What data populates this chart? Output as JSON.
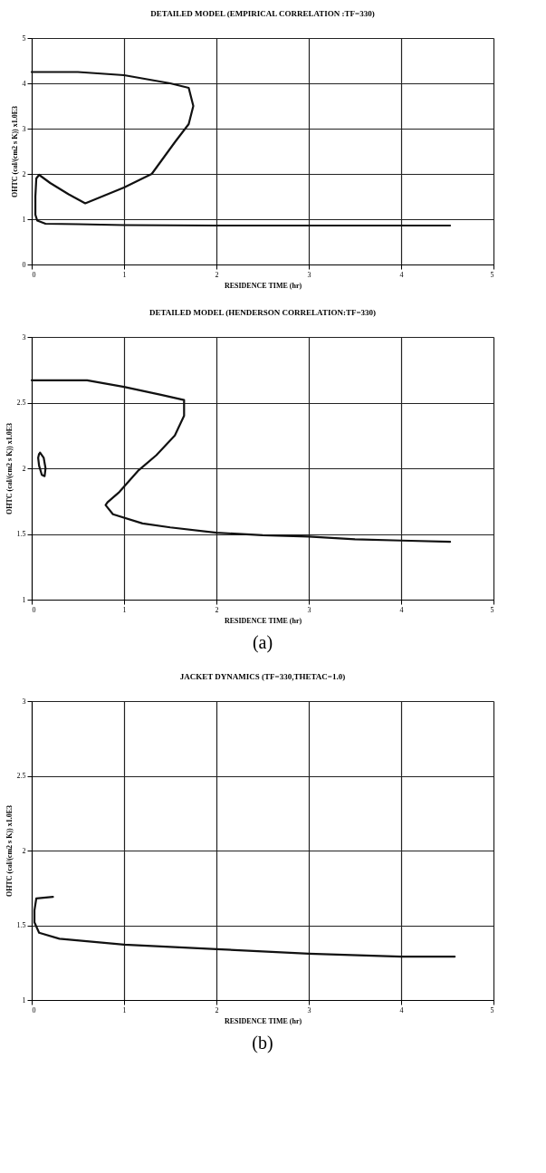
{
  "chart_data": [
    {
      "type": "line",
      "title": "DETAILED MODEL (EMPIRICAL CORRELATION :TF=330)",
      "xlabel": "RESIDENCE TIME (hr)",
      "ylabel": "OHTC (cal/(cm2 s K)) x1.0E3",
      "xlim": [
        0,
        5
      ],
      "ylim": [
        0,
        5
      ],
      "xticks": [
        0,
        1,
        2,
        3,
        4,
        5
      ],
      "yticks": [
        0,
        1,
        2,
        3,
        4,
        5
      ],
      "grid": true,
      "series": [
        {
          "color": "#111111",
          "x": [
            0,
            0.5,
            1,
            1.5,
            1.7,
            1.75,
            1.7,
            1.55,
            1.3,
            1,
            0.7,
            0.58,
            0.4,
            0.2,
            0.08,
            0.05,
            0.04,
            0.04,
            0.06,
            0.15,
            0.5,
            1,
            2,
            3,
            4,
            4.53
          ],
          "values": [
            4.25,
            4.25,
            4.18,
            4.0,
            3.9,
            3.5,
            3.1,
            2.7,
            2.0,
            1.7,
            1.45,
            1.35,
            1.55,
            1.8,
            1.98,
            1.9,
            1.5,
            1.1,
            0.97,
            0.9,
            0.89,
            0.87,
            0.86,
            0.86,
            0.86,
            0.86
          ]
        }
      ]
    },
    {
      "type": "line",
      "title": "DETAILED MODEL (HENDERSON CORRELATION:TF=330)",
      "xlabel": "RESIDENCE TIME (hr)",
      "ylabel": "OHTC (cal/(cm2 s K)) x1.0E3",
      "xlim": [
        0,
        5
      ],
      "ylim": [
        1,
        3
      ],
      "xticks": [
        0,
        1,
        2,
        3,
        4,
        5
      ],
      "yticks": [
        1,
        1.5,
        2,
        2.5,
        3
      ],
      "grid": true,
      "annotations": [
        "(a)"
      ],
      "series": [
        {
          "color": "#111111",
          "x": [
            0,
            0.6,
            1,
            1.4,
            1.65,
            1.65,
            1.55,
            1.35,
            1.15,
            0.95,
            0.82,
            0.8,
            0.88,
            1.2,
            1.5,
            2,
            2.5,
            3,
            3.5,
            4,
            4.53
          ],
          "values": [
            2.67,
            2.67,
            2.62,
            2.56,
            2.52,
            2.4,
            2.25,
            2.1,
            1.98,
            1.82,
            1.74,
            1.72,
            1.65,
            1.58,
            1.55,
            1.51,
            1.49,
            1.48,
            1.46,
            1.45,
            1.44
          ]
        },
        {
          "color": "#111111",
          "x": [
            0.09,
            0.13,
            0.15,
            0.14,
            0.11,
            0.08,
            0.07,
            0.08
          ],
          "values": [
            2.12,
            2.08,
            2.0,
            1.94,
            1.95,
            2.02,
            2.08,
            2.11
          ]
        }
      ]
    },
    {
      "type": "line",
      "title": "JACKET DYNAMICS     (TF=330,THETAC=1.0)",
      "xlabel": "RESIDENCE TIME (hr)",
      "ylabel": "OHTC (cal/(cm2 s K)) x1.0E3",
      "xlim": [
        0,
        5
      ],
      "ylim": [
        1,
        3
      ],
      "xticks": [
        0,
        1,
        2,
        3,
        4,
        5
      ],
      "yticks": [
        1,
        1.5,
        2,
        2.5,
        3
      ],
      "grid": true,
      "annotations": [
        "(b)"
      ],
      "series": [
        {
          "color": "#111111",
          "x": [
            0.23,
            0.05,
            0.03,
            0.03,
            0.08,
            0.3,
            1,
            2,
            3,
            4,
            4.58
          ],
          "values": [
            1.69,
            1.68,
            1.6,
            1.52,
            1.45,
            1.41,
            1.37,
            1.34,
            1.31,
            1.29,
            1.29
          ]
        }
      ]
    }
  ]
}
